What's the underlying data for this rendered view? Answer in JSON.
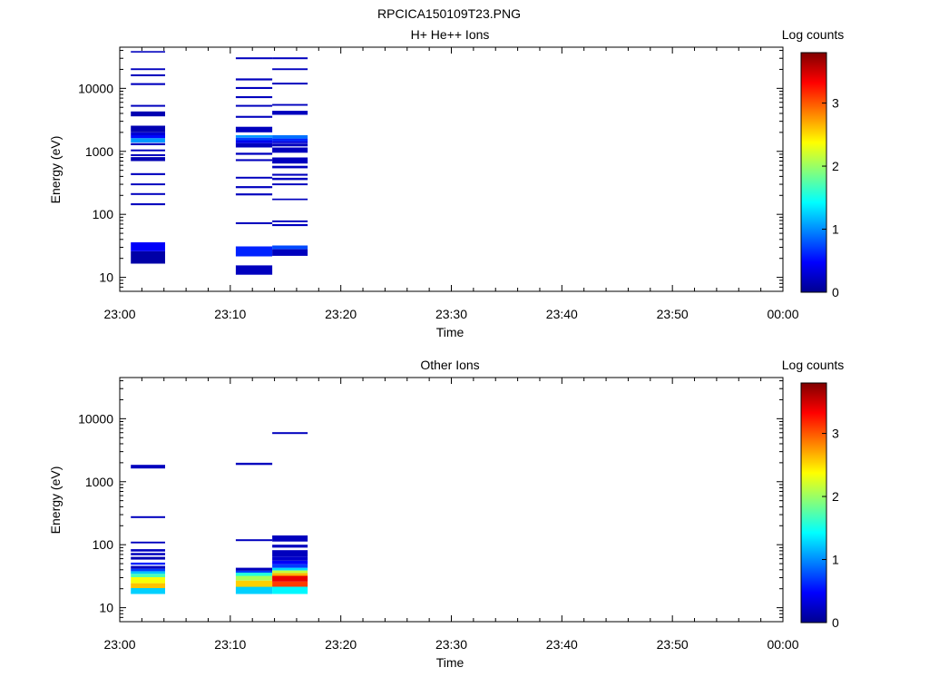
{
  "page": {
    "title": "RPCICA150109T23.PNG"
  },
  "colorbar": {
    "label": "Log counts",
    "ticks": [
      "0",
      "1",
      "2",
      "3"
    ],
    "min": 0,
    "max": 3.8,
    "colormap": [
      "#00008f",
      "#0000ff",
      "#00ffff",
      "#ffff00",
      "#ff0000",
      "#800000"
    ]
  },
  "chart_data": [
    {
      "type": "heatmap",
      "title": "H+ He++ Ions",
      "xlabel": "Time",
      "ylabel": "Energy (eV)",
      "y_scale": "log",
      "ylim": [
        6,
        45000
      ],
      "xlim_min": [
        0,
        60
      ],
      "x_tick_labels": [
        "23:00",
        "23:10",
        "23:20",
        "23:30",
        "23:40",
        "23:50",
        "00:00"
      ],
      "y_tick_labels": [
        "10",
        "100",
        "1000",
        "10000"
      ],
      "value_label": "Log counts",
      "columns": [
        {
          "t0": 1.0,
          "t1": 4.1,
          "cells": [
            {
              "e0": 16.5,
              "e1": 26,
              "v": 0.1
            },
            {
              "e0": 26,
              "e1": 36,
              "v": 0.45
            },
            {
              "e0": 140,
              "e1": 150,
              "v": 0.2
            },
            {
              "e0": 203,
              "e1": 217,
              "v": 0.2
            },
            {
              "e0": 290,
              "e1": 310,
              "v": 0.2
            },
            {
              "e0": 420,
              "e1": 450,
              "v": 0.2
            },
            {
              "e0": 700,
              "e1": 810,
              "v": 0.15
            },
            {
              "e0": 840,
              "e1": 900,
              "v": 0.2
            },
            {
              "e0": 1000,
              "e1": 1070,
              "v": 0.2
            },
            {
              "e0": 1250,
              "e1": 1350,
              "v": 0.2
            },
            {
              "e0": 1380,
              "e1": 1620,
              "v": 1.05
            },
            {
              "e0": 1620,
              "e1": 1800,
              "v": 0.5
            },
            {
              "e0": 1800,
              "e1": 2000,
              "v": 0.3
            },
            {
              "e0": 2000,
              "e1": 2550,
              "v": 0.15
            },
            {
              "e0": 3600,
              "e1": 4300,
              "v": 0.15
            },
            {
              "e0": 5100,
              "e1": 5450,
              "v": 0.2
            },
            {
              "e0": 11300,
              "e1": 12100,
              "v": 0.2
            },
            {
              "e0": 15600,
              "e1": 16700,
              "v": 0.2
            },
            {
              "e0": 19500,
              "e1": 20800,
              "v": 0.2
            },
            {
              "e0": 37000,
              "e1": 39000,
              "v": 0.2
            }
          ]
        },
        {
          "t0": 10.5,
          "t1": 13.8,
          "cells": [
            {
              "e0": 11,
              "e1": 15.5,
              "v": 0.2
            },
            {
              "e0": 21.5,
              "e1": 31,
              "v": 0.6
            },
            {
              "e0": 70,
              "e1": 75,
              "v": 0.2
            },
            {
              "e0": 200,
              "e1": 215,
              "v": 0.2
            },
            {
              "e0": 260,
              "e1": 280,
              "v": 0.2
            },
            {
              "e0": 370,
              "e1": 395,
              "v": 0.2
            },
            {
              "e0": 700,
              "e1": 750,
              "v": 0.2
            },
            {
              "e0": 880,
              "e1": 950,
              "v": 0.2
            },
            {
              "e0": 1150,
              "e1": 1350,
              "v": 0.2
            },
            {
              "e0": 1350,
              "e1": 1500,
              "v": 0.4
            },
            {
              "e0": 1500,
              "e1": 1650,
              "v": 0.7
            },
            {
              "e0": 1650,
              "e1": 1800,
              "v": 1.05
            },
            {
              "e0": 2000,
              "e1": 2450,
              "v": 0.2
            },
            {
              "e0": 3400,
              "e1": 3650,
              "v": 0.2
            },
            {
              "e0": 5100,
              "e1": 5450,
              "v": 0.2
            },
            {
              "e0": 7000,
              "e1": 7500,
              "v": 0.2
            },
            {
              "e0": 9800,
              "e1": 10500,
              "v": 0.2
            },
            {
              "e0": 13400,
              "e1": 14400,
              "v": 0.2
            },
            {
              "e0": 29000,
              "e1": 31000,
              "v": 0.2
            }
          ]
        },
        {
          "t0": 13.8,
          "t1": 17.0,
          "cells": [
            {
              "e0": 22,
              "e1": 28,
              "v": 0.2
            },
            {
              "e0": 28,
              "e1": 32,
              "v": 0.75
            },
            {
              "e0": 65,
              "e1": 70,
              "v": 0.2
            },
            {
              "e0": 75,
              "e1": 80,
              "v": 0.2
            },
            {
              "e0": 168,
              "e1": 178,
              "v": 0.2
            },
            {
              "e0": 290,
              "e1": 310,
              "v": 0.2
            },
            {
              "e0": 350,
              "e1": 380,
              "v": 0.2
            },
            {
              "e0": 410,
              "e1": 440,
              "v": 0.2
            },
            {
              "e0": 540,
              "e1": 590,
              "v": 0.2
            },
            {
              "e0": 640,
              "e1": 800,
              "v": 0.2
            },
            {
              "e0": 950,
              "e1": 1150,
              "v": 0.2
            },
            {
              "e0": 1200,
              "e1": 1330,
              "v": 0.2
            },
            {
              "e0": 1350,
              "e1": 1450,
              "v": 0.3
            },
            {
              "e0": 1450,
              "e1": 1600,
              "v": 0.6
            },
            {
              "e0": 1600,
              "e1": 1800,
              "v": 0.9
            },
            {
              "e0": 3800,
              "e1": 4400,
              "v": 0.2
            },
            {
              "e0": 5300,
              "e1": 5650,
              "v": 0.2
            },
            {
              "e0": 11500,
              "e1": 12300,
              "v": 0.2
            },
            {
              "e0": 19500,
              "e1": 20800,
              "v": 0.2
            },
            {
              "e0": 29000,
              "e1": 31000,
              "v": 0.2
            }
          ]
        }
      ]
    },
    {
      "type": "heatmap",
      "title": "Other Ions",
      "xlabel": "Time",
      "ylabel": "Energy (eV)",
      "y_scale": "log",
      "ylim": [
        6,
        45000
      ],
      "xlim_min": [
        0,
        60
      ],
      "x_tick_labels": [
        "23:00",
        "23:10",
        "23:20",
        "23:30",
        "23:40",
        "23:50",
        "00:00"
      ],
      "y_tick_labels": [
        "10",
        "100",
        "1000",
        "10000"
      ],
      "value_label": "Log counts",
      "columns": [
        {
          "t0": 1.0,
          "t1": 4.1,
          "cells": [
            {
              "e0": 16.5,
              "e1": 20.5,
              "v": 1.25
            },
            {
              "e0": 20.5,
              "e1": 24.5,
              "v": 2.6
            },
            {
              "e0": 24.5,
              "e1": 30.5,
              "v": 2.35
            },
            {
              "e0": 30.5,
              "e1": 34.5,
              "v": 1.7
            },
            {
              "e0": 34.5,
              "e1": 38,
              "v": 1.2
            },
            {
              "e0": 38,
              "e1": 41.5,
              "v": 0.7
            },
            {
              "e0": 41.5,
              "e1": 46,
              "v": 0.2
            },
            {
              "e0": 48,
              "e1": 52,
              "v": 0.6
            },
            {
              "e0": 58,
              "e1": 64,
              "v": 0.15
            },
            {
              "e0": 68,
              "e1": 74,
              "v": 0.2
            },
            {
              "e0": 78,
              "e1": 85,
              "v": 0.2
            },
            {
              "e0": 105,
              "e1": 112,
              "v": 0.2
            },
            {
              "e0": 265,
              "e1": 283,
              "v": 0.2
            },
            {
              "e0": 1620,
              "e1": 1850,
              "v": 0.2
            }
          ]
        },
        {
          "t0": 10.5,
          "t1": 13.8,
          "cells": [
            {
              "e0": 16.5,
              "e1": 21.5,
              "v": 1.25
            },
            {
              "e0": 21.5,
              "e1": 27,
              "v": 2.55
            },
            {
              "e0": 27,
              "e1": 32,
              "v": 2.05
            },
            {
              "e0": 32,
              "e1": 36,
              "v": 1.55
            },
            {
              "e0": 36,
              "e1": 38.5,
              "v": 0.7
            },
            {
              "e0": 38.5,
              "e1": 43,
              "v": 0.2
            },
            {
              "e0": 114,
              "e1": 122,
              "v": 0.2
            },
            {
              "e0": 1850,
              "e1": 2000,
              "v": 0.2
            }
          ]
        },
        {
          "t0": 13.8,
          "t1": 17.0,
          "cells": [
            {
              "e0": 16.5,
              "e1": 21.5,
              "v": 1.4
            },
            {
              "e0": 21.5,
              "e1": 26,
              "v": 3.1
            },
            {
              "e0": 26,
              "e1": 32,
              "v": 3.4
            },
            {
              "e0": 32,
              "e1": 35.5,
              "v": 2.65
            },
            {
              "e0": 35.5,
              "e1": 39,
              "v": 2.15
            },
            {
              "e0": 39,
              "e1": 43,
              "v": 1.3
            },
            {
              "e0": 43,
              "e1": 49,
              "v": 0.7
            },
            {
              "e0": 49,
              "e1": 56,
              "v": 0.45
            },
            {
              "e0": 56,
              "e1": 65,
              "v": 0.25
            },
            {
              "e0": 65,
              "e1": 82,
              "v": 0.2
            },
            {
              "e0": 90,
              "e1": 100,
              "v": 0.2
            },
            {
              "e0": 112,
              "e1": 140,
              "v": 0.2
            },
            {
              "e0": 5700,
              "e1": 6100,
              "v": 0.2
            }
          ]
        }
      ]
    }
  ]
}
